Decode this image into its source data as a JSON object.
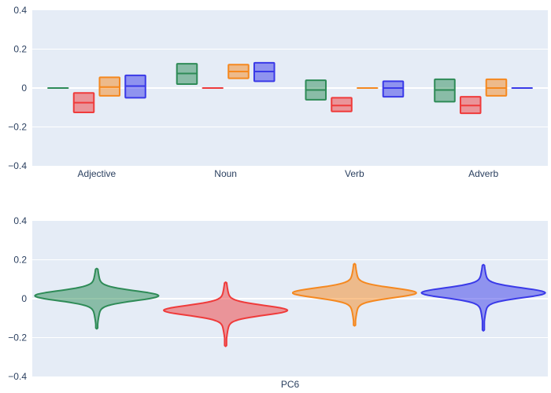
{
  "chart_data": [
    {
      "type": "box",
      "categories": [
        "Adjective",
        "Noun",
        "Verb",
        "Adverb"
      ],
      "ylim": [
        -0.4,
        0.4
      ],
      "yticks": [
        -0.4,
        -0.2,
        0,
        0.2,
        0.4
      ],
      "ytick_labels": [
        "−0.4",
        "−0.2",
        "0",
        "0.2",
        "0.4"
      ],
      "grid": true,
      "series": [
        {
          "color": "#2e8b57",
          "boxes": [
            {
              "q1": 0.0,
              "median": 0.0,
              "q3": 0.0
            },
            {
              "q1": 0.02,
              "median": 0.075,
              "q3": 0.125
            },
            {
              "q1": -0.06,
              "median": -0.01,
              "q3": 0.04
            },
            {
              "q1": -0.07,
              "median": -0.01,
              "q3": 0.045
            }
          ]
        },
        {
          "color": "#ef3b3b",
          "boxes": [
            {
              "q1": -0.125,
              "median": -0.075,
              "q3": -0.025
            },
            {
              "q1": 0.0,
              "median": 0.0,
              "q3": 0.0
            },
            {
              "q1": -0.12,
              "median": -0.09,
              "q3": -0.05
            },
            {
              "q1": -0.13,
              "median": -0.09,
              "q3": -0.045
            }
          ]
        },
        {
          "color": "#f5881f",
          "boxes": [
            {
              "q1": -0.04,
              "median": 0.005,
              "q3": 0.055
            },
            {
              "q1": 0.05,
              "median": 0.085,
              "q3": 0.12
            },
            {
              "q1": 0.0,
              "median": 0.0,
              "q3": 0.0
            },
            {
              "q1": -0.04,
              "median": 0.0,
              "q3": 0.045
            }
          ]
        },
        {
          "color": "#3a3ae8",
          "boxes": [
            {
              "q1": -0.05,
              "median": 0.01,
              "q3": 0.065
            },
            {
              "q1": 0.035,
              "median": 0.085,
              "q3": 0.13
            },
            {
              "q1": -0.045,
              "median": 0.0,
              "q3": 0.035
            },
            {
              "q1": 0.0,
              "median": 0.0,
              "q3": 0.0
            }
          ]
        }
      ]
    },
    {
      "type": "violin",
      "category": "PC6",
      "ylim": [
        -0.4,
        0.4
      ],
      "yticks": [
        -0.4,
        -0.2,
        0,
        0.2,
        0.4
      ],
      "ytick_labels": [
        "−0.4",
        "−0.2",
        "0",
        "0.2",
        "0.4"
      ],
      "grid": true,
      "series": [
        {
          "color": "#2e8b57",
          "min": -0.155,
          "max": 0.155,
          "mode": 0.015
        },
        {
          "color": "#ef3b3b",
          "min": -0.245,
          "max": 0.085,
          "mode": -0.06
        },
        {
          "color": "#f5881f",
          "min": -0.14,
          "max": 0.18,
          "mode": 0.03
        },
        {
          "color": "#3a3ae8",
          "min": -0.165,
          "max": 0.175,
          "mode": 0.03
        }
      ]
    }
  ]
}
